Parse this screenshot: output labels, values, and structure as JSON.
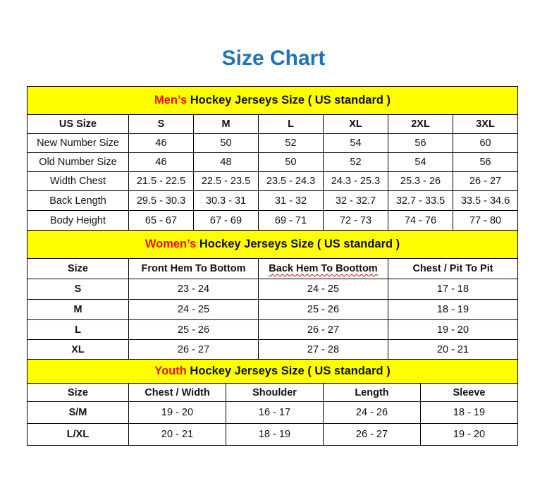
{
  "title": "Size Chart",
  "colors": {
    "title": "#1f73b7",
    "section_bg": "#ffff00",
    "section_accent": "#e8100f"
  },
  "men": {
    "title_accent": "Men’s",
    "title_rest": " Hockey Jerseys Size ( US standard )",
    "headers": [
      "US Size",
      "S",
      "M",
      "L",
      "XL",
      "2XL",
      "3XL"
    ],
    "rows": [
      [
        "New Number Size",
        "46",
        "50",
        "52",
        "54",
        "56",
        "60"
      ],
      [
        "Old Number Size",
        "46",
        "48",
        "50",
        "52",
        "54",
        "56"
      ],
      [
        "Width Chest",
        "21.5 - 22.5",
        "22.5 - 23.5",
        "23.5 - 24.3",
        "24.3 - 25.3",
        "25.3 - 26",
        "26 - 27"
      ],
      [
        "Back Length",
        "29.5 - 30.3",
        "30.3 - 31",
        "31 - 32",
        "32 - 32.7",
        "32.7 - 33.5",
        "33.5 - 34.6"
      ],
      [
        "Body Height",
        "65 - 67",
        "67 - 69",
        "69 - 71",
        "72 - 73",
        "74 - 76",
        "77 - 80"
      ]
    ]
  },
  "women": {
    "title_accent": "Women’s",
    "title_rest": " Hockey Jerseys Size ( US standard )",
    "headers": [
      "Size",
      "Front Hem To Bottom",
      "Back Hem To Boottom",
      "Chest / Pit To Pit"
    ],
    "rows": [
      [
        "S",
        "23 - 24",
        "24 - 25",
        "17 - 18"
      ],
      [
        "M",
        "24 - 25",
        "25 - 26",
        "18 - 19"
      ],
      [
        "L",
        "25 - 26",
        "26 - 27",
        "19 - 20"
      ],
      [
        "XL",
        "26 - 27",
        "27 - 28",
        "20 - 21"
      ]
    ]
  },
  "youth": {
    "title_accent": "Youth",
    "title_rest": " Hockey Jerseys Size ( US standard )",
    "headers": [
      "Size",
      "Chest / Width",
      "Shoulder",
      "Length",
      "Sleeve"
    ],
    "rows": [
      [
        "S/M",
        "19 - 20",
        "16 - 17",
        "24 - 26",
        "18 - 19"
      ],
      [
        "L/XL",
        "20 - 21",
        "18 - 19",
        "26 - 27",
        "19 - 20"
      ]
    ]
  }
}
